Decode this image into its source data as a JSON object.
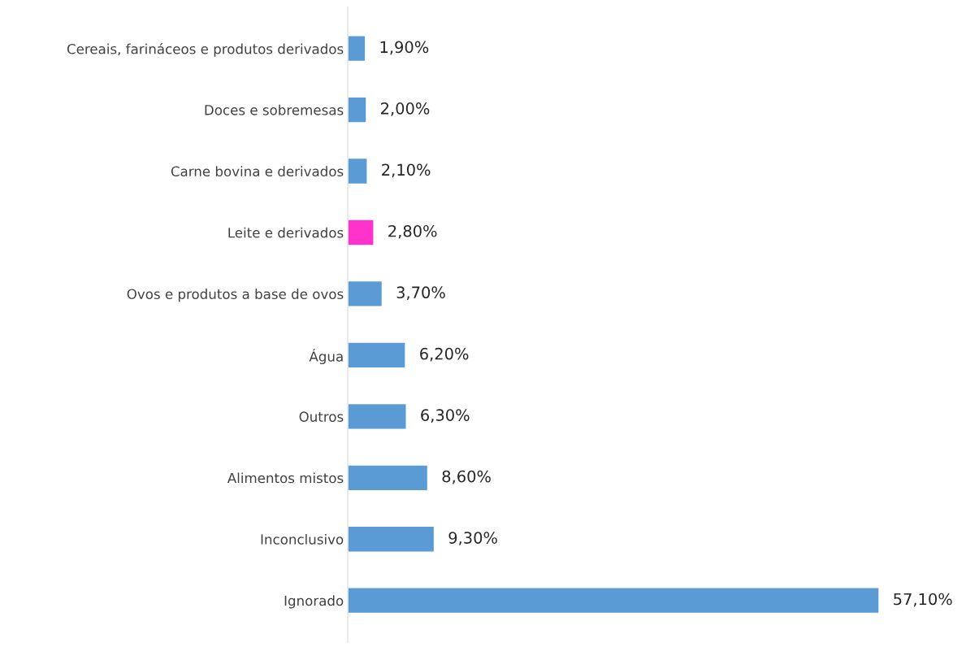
{
  "chart_data": {
    "type": "bar",
    "orientation": "horizontal",
    "categories": [
      "Cereais, farináceos e produtos derivados",
      "Doces e sobremesas",
      "Carne bovina e derivados",
      "Leite e derivados",
      "Ovos e produtos a base de ovos",
      "Água",
      "Outros",
      "Alimentos mistos",
      "Inconclusivo",
      "Ignorado"
    ],
    "values": [
      1.9,
      2.0,
      2.1,
      2.8,
      3.7,
      6.2,
      6.3,
      8.6,
      9.3,
      57.1
    ],
    "colors": [
      "#5b9bd5",
      "#5b9bd5",
      "#5b9bd5",
      "#ff33cc",
      "#5b9bd5",
      "#5b9bd5",
      "#5b9bd5",
      "#5b9bd5",
      "#5b9bd5",
      "#5b9bd5"
    ],
    "value_labels": [
      "1,90%",
      "2,00%",
      "2,10%",
      "2,80%",
      "3,70%",
      "6,20%",
      "6,30%",
      "8,60%",
      "9,30%",
      "57,10%"
    ]
  }
}
